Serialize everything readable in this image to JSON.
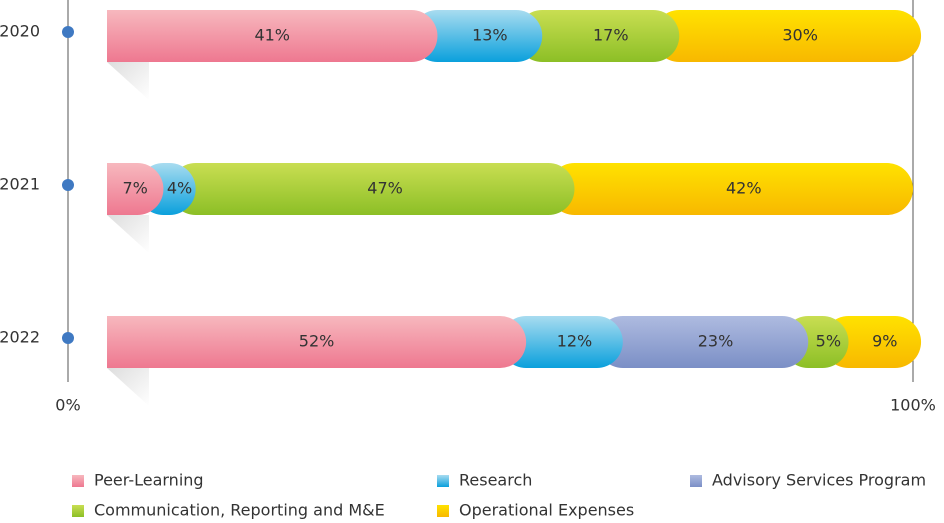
{
  "chart_data": {
    "type": "stacked_bar_horizontal",
    "categories": [
      "2020",
      "2021",
      "2022"
    ],
    "series": [
      {
        "name": "Peer-Learning",
        "color": "#ee7890",
        "values": [
          41,
          7,
          52
        ],
        "value_labels": [
          "41%",
          "7%",
          "52%"
        ]
      },
      {
        "name": "Research",
        "color": "#0aa0dc",
        "values": [
          13,
          4,
          12
        ],
        "value_labels": [
          "13%",
          "4%",
          "12%"
        ]
      },
      {
        "name": "Advisory Services Program",
        "color": "#7b8fc6",
        "values": [
          null,
          null,
          23
        ],
        "value_labels": [
          null,
          null,
          "23%"
        ]
      },
      {
        "name": "Communication, Reporting and M&E",
        "color": "#8cbf26",
        "values": [
          17,
          47,
          5
        ],
        "value_labels": [
          "17%",
          "47%",
          "5%"
        ]
      },
      {
        "name": "Operational Expenses",
        "color": "#f8b800",
        "values": [
          30,
          42,
          9
        ],
        "value_labels": [
          "30%",
          "42%",
          "9%"
        ]
      }
    ],
    "xlim": [
      0,
      100
    ],
    "xticks": [
      {
        "value": 0,
        "label": "0%"
      },
      {
        "value": 100,
        "label": "100%"
      }
    ]
  }
}
